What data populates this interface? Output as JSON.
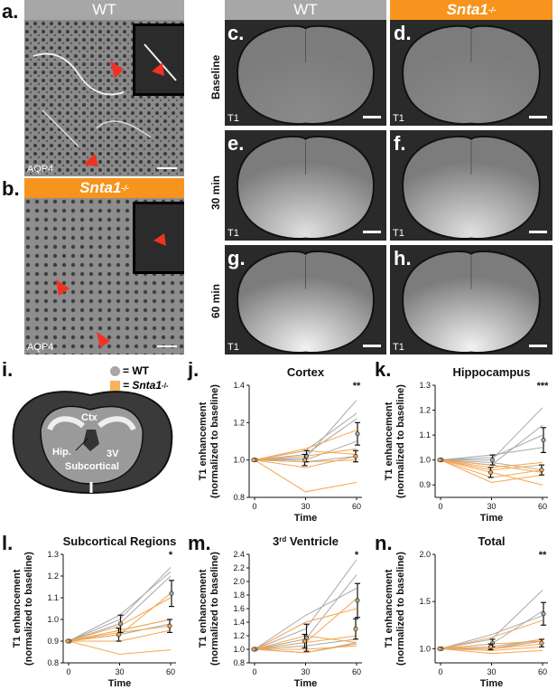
{
  "panel_letters": {
    "a": "a.",
    "b": "b.",
    "c": "c.",
    "d": "d.",
    "e": "e.",
    "f": "f.",
    "g": "g.",
    "h": "h.",
    "i": "i.",
    "j": "j.",
    "k": "k.",
    "l": "l.",
    "m": "m.",
    "n": "n."
  },
  "headers": {
    "wt_left": "WT",
    "snta1_left": "Snta1",
    "wt_right": "WT",
    "snta1_right": "Snta1",
    "sup": "-/-"
  },
  "micro_labels": {
    "stain_a": "AQP4",
    "stain_b": "AQP4"
  },
  "mri": {
    "row_labels": [
      "Baseline",
      "30 min",
      "60 min"
    ],
    "t1_label": "T1"
  },
  "schematic": {
    "legend_wt": "= WT",
    "legend_snta1": "= Snta1",
    "legend_sup": "-/-",
    "labels": {
      "ctx": "Ctx",
      "hip": "Hip.",
      "v3": "3V",
      "sub": "Subcortical"
    },
    "colors": {
      "wt": "#a7a7a7",
      "snta1": "#f7b25a",
      "brain_outer": "#3a3a3a",
      "brain_inner": "#9a9a9a"
    }
  },
  "colors": {
    "wt_line": "#a8a8a8",
    "snta1_line": "#f5a650",
    "mean": "#111111"
  },
  "chart_data": [
    {
      "id": "j",
      "type": "line",
      "title": "Cortex",
      "xlabel": "Time",
      "ylabel": [
        "T1 enhancement",
        "(normalized to baseline)"
      ],
      "x": [
        0,
        30,
        60
      ],
      "xticks": [
        "0",
        "30",
        "60"
      ],
      "ylim": [
        0.8,
        1.4
      ],
      "yticks": [
        "0.8",
        "1.0",
        "1.2",
        "1.4"
      ],
      "sig": "**",
      "wt_lines": [
        [
          1.0,
          1.01,
          1.32
        ],
        [
          1.0,
          1.05,
          1.25
        ],
        [
          1.0,
          1.0,
          1.1
        ],
        [
          1.0,
          1.03,
          1.22
        ],
        [
          1.0,
          0.99,
          1.02
        ]
      ],
      "snta1_lines": [
        [
          1.0,
          0.96,
          1.02
        ],
        [
          1.0,
          1.05,
          1.03
        ],
        [
          1.0,
          0.99,
          1.0
        ],
        [
          1.0,
          1.06,
          1.16
        ],
        [
          1.0,
          0.83,
          0.88
        ],
        [
          1.0,
          1.02,
          1.06
        ]
      ],
      "wt_mean": [
        1.0,
        1.02,
        1.14
      ],
      "wt_err": [
        0,
        0.03,
        0.06
      ],
      "snta1_mean": [
        1.0,
        1.0,
        1.02
      ],
      "snta1_err": [
        0,
        0.03,
        0.03
      ]
    },
    {
      "id": "k",
      "type": "line",
      "title": "Hippocampus",
      "xlabel": "Time",
      "ylabel": [
        "T1 enhancement",
        "(normalized to baseline)"
      ],
      "x": [
        0,
        30,
        60
      ],
      "xticks": [
        "0",
        "30",
        "60"
      ],
      "ylim": [
        0.85,
        1.3
      ],
      "yticks": [
        "0.9",
        "1.0",
        "1.1",
        "1.2",
        "1.3"
      ],
      "sig": "***",
      "wt_lines": [
        [
          1.0,
          1.0,
          1.21
        ],
        [
          1.0,
          0.98,
          1.14
        ],
        [
          1.0,
          1.02,
          1.05
        ],
        [
          1.0,
          0.99,
          0.96
        ],
        [
          1.0,
          1.01,
          1.1
        ]
      ],
      "snta1_lines": [
        [
          1.0,
          0.96,
          0.98
        ],
        [
          1.0,
          0.93,
          0.96
        ],
        [
          1.0,
          0.95,
          0.9
        ],
        [
          1.0,
          0.97,
          0.99
        ],
        [
          1.0,
          0.91,
          0.94
        ],
        [
          1.0,
          0.98,
          0.95
        ]
      ],
      "wt_mean": [
        1.0,
        1.0,
        1.08
      ],
      "wt_err": [
        0,
        0.02,
        0.05
      ],
      "snta1_mean": [
        1.0,
        0.95,
        0.96
      ],
      "snta1_err": [
        0,
        0.02,
        0.02
      ]
    },
    {
      "id": "l",
      "type": "line",
      "title": "Subcortical Regions",
      "xlabel": "Time",
      "ylabel": [
        "T1 enhancement",
        "(normalized to baseline)"
      ],
      "x": [
        0,
        30,
        60
      ],
      "xticks": [
        "0",
        "30",
        "60"
      ],
      "ylim": [
        0.8,
        1.3
      ],
      "yticks": [
        "0.8",
        "0.9",
        "1.0",
        "1.1",
        "1.2",
        "1.3"
      ],
      "sig": "*",
      "wt_lines": [
        [
          0.9,
          1.0,
          1.24
        ],
        [
          0.9,
          0.98,
          1.2
        ],
        [
          0.9,
          0.93,
          0.98
        ],
        [
          0.9,
          1.02,
          1.22
        ],
        [
          0.9,
          0.95,
          1.0
        ]
      ],
      "snta1_lines": [
        [
          0.9,
          0.93,
          1.12
        ],
        [
          0.9,
          0.9,
          0.95
        ],
        [
          0.9,
          0.97,
          1.1
        ],
        [
          0.9,
          0.94,
          0.97
        ],
        [
          0.9,
          0.84,
          0.86
        ],
        [
          0.9,
          0.95,
          1.0
        ]
      ],
      "wt_mean": [
        0.9,
        0.98,
        1.12
      ],
      "wt_err": [
        0,
        0.04,
        0.06
      ],
      "snta1_mean": [
        0.9,
        0.93,
        0.97
      ],
      "snta1_err": [
        0,
        0.03,
        0.03
      ]
    },
    {
      "id": "m",
      "type": "line",
      "title": "3rd Ventricle",
      "title_sup": "rd",
      "xlabel": "Time",
      "ylabel": [
        "T1 enhancement",
        "(normalized to baseline)"
      ],
      "x": [
        0,
        30,
        60
      ],
      "xticks": [
        "0",
        "30",
        "60"
      ],
      "ylim": [
        0.8,
        2.4
      ],
      "yticks": [
        "0.8",
        "1.0",
        "1.2",
        "1.4",
        "1.6",
        "1.8",
        "2.0",
        "2.2",
        "2.4"
      ],
      "sig": "*",
      "wt_lines": [
        [
          1.0,
          1.3,
          2.32
        ],
        [
          1.0,
          1.15,
          2.1
        ],
        [
          1.0,
          1.5,
          1.9
        ],
        [
          1.0,
          1.05,
          1.15
        ],
        [
          1.0,
          0.95,
          1.1
        ]
      ],
      "snta1_lines": [
        [
          1.0,
          1.1,
          1.75
        ],
        [
          1.0,
          1.2,
          1.1
        ],
        [
          1.0,
          1.0,
          1.05
        ],
        [
          1.0,
          1.4,
          1.6
        ],
        [
          1.0,
          0.95,
          1.08
        ],
        [
          1.0,
          1.1,
          1.2
        ]
      ],
      "wt_mean": [
        1.0,
        1.17,
        1.72
      ],
      "wt_err": [
        0,
        0.2,
        0.25
      ],
      "snta1_mean": [
        1.0,
        1.12,
        1.3
      ],
      "snta1_err": [
        0,
        0.1,
        0.15
      ]
    },
    {
      "id": "n",
      "type": "line",
      "title": "Total",
      "xlabel": "Time",
      "ylabel": [
        "T1 enhancement",
        "(normalized to baseline)"
      ],
      "x": [
        0,
        30,
        60
      ],
      "xticks": [
        "0",
        "30",
        "60"
      ],
      "ylim": [
        0.85,
        2.0
      ],
      "yticks": [
        "1.0",
        "1.5",
        "2.0"
      ],
      "sig": "**",
      "wt_lines": [
        [
          1.0,
          1.1,
          1.62
        ],
        [
          1.0,
          1.15,
          1.35
        ],
        [
          1.0,
          1.05,
          1.4
        ],
        [
          1.0,
          1.0,
          1.08
        ],
        [
          1.0,
          1.02,
          1.1
        ]
      ],
      "snta1_lines": [
        [
          1.0,
          1.0,
          1.05
        ],
        [
          1.0,
          1.05,
          1.08
        ],
        [
          1.0,
          0.98,
          1.02
        ],
        [
          1.0,
          1.12,
          1.3
        ],
        [
          1.0,
          0.95,
          0.98
        ],
        [
          1.0,
          1.0,
          1.1
        ]
      ],
      "wt_mean": [
        1.0,
        1.06,
        1.37
      ],
      "wt_err": [
        0,
        0.04,
        0.12
      ],
      "snta1_mean": [
        1.0,
        1.02,
        1.06
      ],
      "snta1_err": [
        0,
        0.03,
        0.04
      ]
    }
  ]
}
